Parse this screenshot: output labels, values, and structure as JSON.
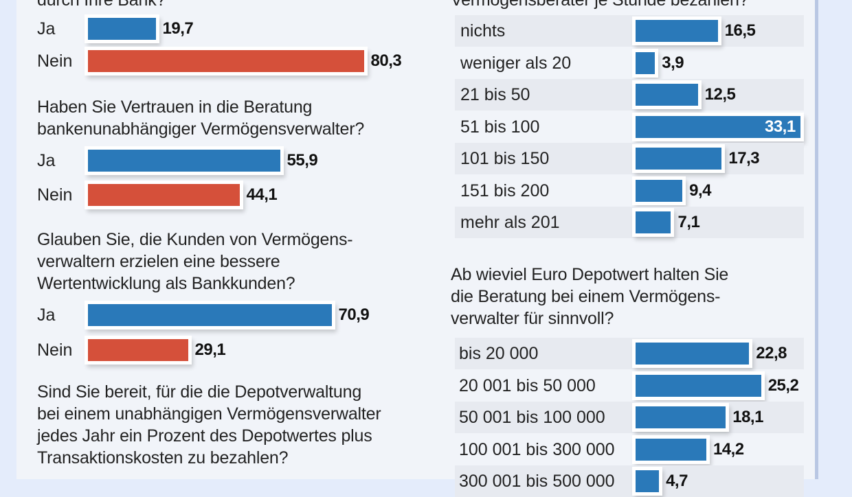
{
  "colors": {
    "ja": "#2a79b9",
    "nein": "#d5503a",
    "range": "#2a79b9"
  },
  "chart_data": [
    {
      "type": "bar",
      "orientation": "horizontal",
      "title": "… durch Ihre Bank?",
      "title_visible": "durch Ihre Bank?",
      "unit": "Prozent",
      "categories": [
        "Ja",
        "Nein"
      ],
      "values": [
        19.7,
        80.3
      ],
      "value_labels": [
        "19,7",
        "80,3"
      ]
    },
    {
      "type": "bar",
      "orientation": "horizontal",
      "title": "Haben Sie Vertrauen in die Beratung\nbankenunabhängiger Vermögensverwalter?",
      "categories": [
        "Ja",
        "Nein"
      ],
      "values": [
        55.9,
        44.1
      ],
      "value_labels": [
        "55,9",
        "44,1"
      ]
    },
    {
      "type": "bar",
      "orientation": "horizontal",
      "title": "Glauben Sie, die Kunden von Vermögens-\nverwaltern erzielen eine bessere\nWertentwicklung als Bankkunden?",
      "categories": [
        "Ja",
        "Nein"
      ],
      "values": [
        70.9,
        29.1
      ],
      "value_labels": [
        "70,9",
        "29,1"
      ]
    },
    {
      "type": "bar",
      "orientation": "horizontal",
      "title": "Sind Sie bereit, für die die Depotverwaltung\nbei einem unabhängigen Vermögensverwalter\njedes Jahr ein Prozent des Depotwertes plus\nTransaktionskosten zu bezahlen?",
      "categories": [],
      "values": []
    },
    {
      "type": "bar",
      "orientation": "horizontal",
      "title": "… Vermögensberater je Stunde bezahlen?",
      "title_visible": "Vermögensberater je Stunde bezahlen?",
      "categories": [
        "nichts",
        "weniger als 20",
        "21 bis 50",
        "51 bis 100",
        "101 bis 150",
        "151 bis 200",
        "mehr als 201"
      ],
      "values": [
        16.5,
        3.9,
        12.5,
        33.1,
        17.3,
        9.4,
        7.1
      ],
      "value_labels": [
        "16,5",
        "3,9",
        "12,5",
        "33,1",
        "17,3",
        "9,4",
        "7,1"
      ],
      "highlight_inside": [
        3
      ]
    },
    {
      "type": "bar",
      "orientation": "horizontal",
      "title": "Ab wieviel Euro Depotwert halten Sie\ndie Beratung bei einem Vermögens-\nverwalter für sinnvoll?",
      "categories": [
        "bis 20 000",
        "20 001 bis 50 000",
        "50 001 bis 100 000",
        "100 001 bis 300 000",
        "300 001 bis 500 000"
      ],
      "values": [
        22.8,
        25.2,
        18.1,
        14.2,
        4.7
      ],
      "value_labels": [
        "22,8",
        "25,2",
        "18,1",
        "14,2",
        "4,7"
      ]
    }
  ]
}
